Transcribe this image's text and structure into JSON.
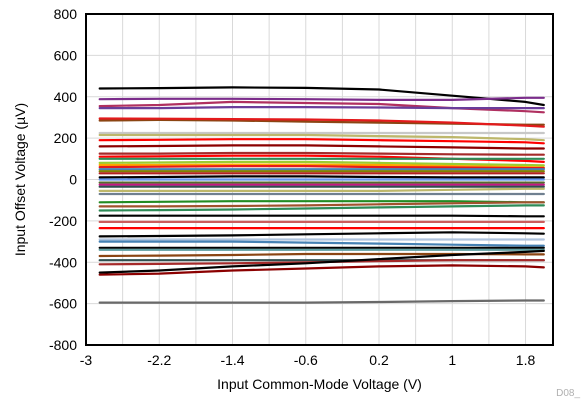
{
  "chart_data": {
    "type": "line",
    "title": "",
    "xlabel": "Input Common-Mode Voltage (V)",
    "ylabel": "Input Offset Voltage (µV)",
    "xlim": [
      -3,
      2.1
    ],
    "ylim": [
      -800,
      800
    ],
    "x_ticks": [
      "-3",
      "-2.2",
      "-1.4",
      "-0.6",
      "0.2",
      "1",
      "1.8"
    ],
    "y_ticks": [
      "800",
      "600",
      "400",
      "200",
      "0",
      "-200",
      "-400",
      "-600",
      "-800"
    ],
    "grid": true,
    "legend": "none",
    "figure_id": "D08_",
    "x": [
      -2.85,
      -2.2,
      -1.4,
      -0.6,
      0.2,
      1.0,
      1.8,
      2.0
    ],
    "series": [
      {
        "color": "#000000",
        "values": [
          440,
          442,
          445,
          443,
          435,
          405,
          375,
          360
        ]
      },
      {
        "color": "#7b2d8b",
        "values": [
          388,
          390,
          390,
          388,
          385,
          385,
          395,
          395
        ]
      },
      {
        "color": "#b03060",
        "values": [
          355,
          360,
          375,
          370,
          365,
          345,
          330,
          325
        ]
      },
      {
        "color": "#6a3d9a",
        "values": [
          345,
          345,
          350,
          350,
          348,
          345,
          345,
          345
        ]
      },
      {
        "color": "#8b4513",
        "values": [
          285,
          288,
          285,
          280,
          275,
          270,
          265,
          265
        ]
      },
      {
        "color": "#e31a1c",
        "values": [
          295,
          294,
          292,
          290,
          285,
          275,
          260,
          255
        ]
      },
      {
        "color": "#c8c8c8",
        "values": [
          225,
          225,
          225,
          225,
          225,
          225,
          225,
          225
        ]
      },
      {
        "color": "#bdb76b",
        "values": [
          215,
          215,
          215,
          215,
          210,
          205,
          195,
          190
        ]
      },
      {
        "color": "#ff0000",
        "values": [
          190,
          192,
          195,
          195,
          190,
          185,
          180,
          175
        ]
      },
      {
        "color": "#8b0000",
        "values": [
          160,
          162,
          165,
          165,
          160,
          155,
          150,
          150
        ]
      },
      {
        "color": "#a52a2a",
        "values": [
          125,
          125,
          128,
          128,
          125,
          122,
          120,
          120
        ]
      },
      {
        "color": "#ff0000",
        "values": [
          110,
          112,
          115,
          115,
          110,
          100,
          90,
          85
        ]
      },
      {
        "color": "#2e8b57",
        "values": [
          100,
          100,
          100,
          100,
          100,
          100,
          100,
          100
        ]
      },
      {
        "color": "#9acd32",
        "values": [
          80,
          82,
          85,
          85,
          80,
          75,
          70,
          68
        ]
      },
      {
        "color": "#ffa500",
        "values": [
          70,
          70,
          72,
          72,
          70,
          65,
          60,
          58
        ]
      },
      {
        "color": "#e31a1c",
        "values": [
          60,
          62,
          65,
          65,
          60,
          58,
          55,
          55
        ]
      },
      {
        "color": "#4682b4",
        "values": [
          50,
          50,
          50,
          50,
          50,
          50,
          50,
          50
        ]
      },
      {
        "color": "#808000",
        "values": [
          40,
          40,
          40,
          40,
          40,
          40,
          40,
          40
        ]
      },
      {
        "color": "#b22222",
        "values": [
          30,
          30,
          30,
          30,
          30,
          30,
          30,
          30
        ]
      },
      {
        "color": "#000000",
        "values": [
          10,
          12,
          15,
          15,
          12,
          10,
          10,
          10
        ]
      },
      {
        "color": "#6495ed",
        "values": [
          0,
          0,
          0,
          0,
          0,
          0,
          0,
          0
        ]
      },
      {
        "color": "#556b2f",
        "values": [
          -15,
          -15,
          -15,
          -15,
          -15,
          -15,
          -15,
          -15
        ]
      },
      {
        "color": "#c71585",
        "values": [
          -25,
          -25,
          -25,
          -25,
          -25,
          -25,
          -25,
          -25
        ]
      },
      {
        "color": "#2f4f4f",
        "values": [
          -35,
          -35,
          -35,
          -35,
          -35,
          -35,
          -35,
          -35
        ]
      },
      {
        "color": "#bdb76b",
        "values": [
          -55,
          -55,
          -55,
          -55,
          -55,
          -50,
          -45,
          -45
        ]
      },
      {
        "color": "#708090",
        "values": [
          -70,
          -70,
          -70,
          -70,
          -70,
          -70,
          -70,
          -70
        ]
      },
      {
        "color": "#228b22",
        "values": [
          -110,
          -108,
          -105,
          -105,
          -105,
          -105,
          -110,
          -110
        ]
      },
      {
        "color": "#a0522d",
        "values": [
          -130,
          -130,
          -128,
          -125,
          -120,
          -115,
          -110,
          -110
        ]
      },
      {
        "color": "#2e8b57",
        "values": [
          -150,
          -148,
          -145,
          -140,
          -135,
          -130,
          -125,
          -125
        ]
      },
      {
        "color": "#000000",
        "values": [
          -175,
          -175,
          -175,
          -175,
          -175,
          -175,
          -178,
          -178
        ]
      },
      {
        "color": "#cd5c5c",
        "values": [
          -205,
          -205,
          -205,
          -205,
          -205,
          -205,
          -205,
          -205
        ]
      },
      {
        "color": "#ff0000",
        "values": [
          -235,
          -235,
          -235,
          -235,
          -235,
          -235,
          -235,
          -235
        ]
      },
      {
        "color": "#000000",
        "values": [
          -275,
          -273,
          -270,
          -265,
          -260,
          -255,
          -260,
          -262
        ]
      },
      {
        "color": "#b0c4de",
        "values": [
          -290,
          -290,
          -290,
          -290,
          -290,
          -290,
          -290,
          -290
        ]
      },
      {
        "color": "#4682b4",
        "values": [
          -300,
          -300,
          -300,
          -305,
          -310,
          -315,
          -320,
          -320
        ]
      },
      {
        "color": "#000000",
        "values": [
          -330,
          -330,
          -330,
          -330,
          -330,
          -330,
          -330,
          -330
        ]
      },
      {
        "color": "#5f9ea0",
        "values": [
          -340,
          -340,
          -340,
          -340,
          -340,
          -340,
          -340,
          -340
        ]
      },
      {
        "color": "#8b4513",
        "values": [
          -370,
          -368,
          -365,
          -360,
          -360,
          -360,
          -362,
          -362
        ]
      },
      {
        "color": "#2f4f4f",
        "values": [
          -390,
          -390,
          -390,
          -390,
          -390,
          -390,
          -390,
          -390
        ]
      },
      {
        "color": "#a52a2a",
        "values": [
          -410,
          -408,
          -405,
          -400,
          -395,
          -390,
          -390,
          -390
        ]
      },
      {
        "color": "#000000",
        "values": [
          -450,
          -440,
          -420,
          -405,
          -385,
          -365,
          -350,
          -345
        ]
      },
      {
        "color": "#8b0000",
        "values": [
          -460,
          -455,
          -440,
          -430,
          -420,
          -415,
          -420,
          -425
        ]
      },
      {
        "color": "#696969",
        "values": [
          -595,
          -595,
          -595,
          -595,
          -592,
          -588,
          -585,
          -585
        ]
      }
    ]
  }
}
